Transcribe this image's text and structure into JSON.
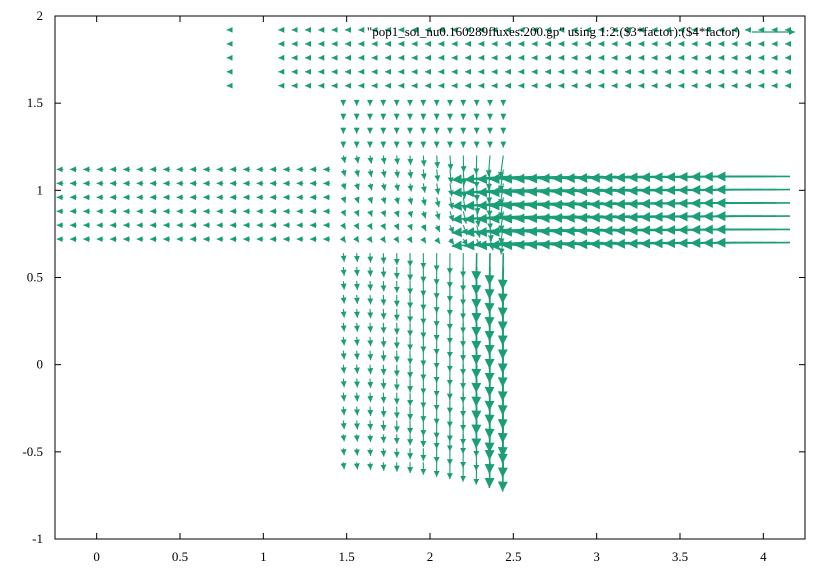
{
  "chart_data": {
    "type": "vector-field",
    "title": "",
    "xlabel": "",
    "ylabel": "",
    "xlim": [
      -0.25,
      4.25
    ],
    "ylim": [
      -1,
      2
    ],
    "xticks": [
      "0",
      "0.5",
      "1",
      "1.5",
      "2",
      "2.5",
      "3",
      "3.5",
      "4"
    ],
    "yticks": [
      "-1",
      "-0.5",
      "0",
      "0.5",
      "1",
      "1.5",
      "2"
    ],
    "grid": false,
    "legend": {
      "placement": "top-right",
      "label": "\"pop1_sol_nu0.160289fluxes:200.gp\" using 1:2:($3*factor):($4*factor)"
    },
    "series_color": "#1a9e77",
    "regions": [
      {
        "name": "top-sparse-left",
        "x": [
          0.8,
          0.8
        ],
        "y": [
          1.6,
          1.92
        ],
        "dy": 0.08,
        "dx": 0.32,
        "u": -0.02,
        "v": 0.0
      },
      {
        "name": "top-sparse",
        "x": [
          1.12,
          4.2
        ],
        "y": [
          1.6,
          1.92
        ],
        "dy": 0.08,
        "dx": 0.08,
        "u": -0.03,
        "v": 0.0
      },
      {
        "name": "left-channel",
        "x": [
          -0.2,
          1.4
        ],
        "y": [
          0.72,
          1.12
        ],
        "dy": 0.08,
        "dx": 0.08,
        "u": -0.04,
        "v": 0.0
      },
      {
        "name": "center-junction",
        "x": [
          1.48,
          2.44
        ],
        "y": [
          0.72,
          1.52
        ],
        "dy": 0.08,
        "dx": 0.08
      },
      {
        "name": "bottom-channel",
        "x": [
          1.48,
          2.44
        ],
        "y": [
          -0.56,
          0.64
        ],
        "dy": 0.08,
        "dx": 0.08
      },
      {
        "name": "right-inlet",
        "x": [
          2.48,
          4.2
        ],
        "y": [
          0.7,
          1.08
        ],
        "dy": 0.076,
        "dx": 0.08
      }
    ]
  }
}
